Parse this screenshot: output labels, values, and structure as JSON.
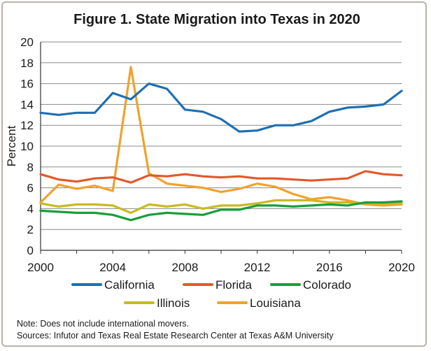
{
  "chart_data": {
    "type": "line",
    "title": "Figure 1. State Migration into Texas in 2020",
    "xlabel": "",
    "ylabel": "Percent",
    "xlim": [
      2000,
      2020
    ],
    "ylim": [
      0,
      20
    ],
    "x_ticks": [
      "2000",
      "2004",
      "2008",
      "2012",
      "2016",
      "2020"
    ],
    "y_ticks": [
      "0",
      "2",
      "4",
      "6",
      "8",
      "10",
      "12",
      "14",
      "16",
      "18",
      "20"
    ],
    "grid": "horizontal",
    "legend_position": "bottom",
    "x": [
      2000,
      2001,
      2002,
      2003,
      2004,
      2005,
      2006,
      2007,
      2008,
      2009,
      2010,
      2011,
      2012,
      2013,
      2014,
      2015,
      2016,
      2017,
      2018,
      2019,
      2020
    ],
    "series": [
      {
        "name": "California",
        "color": "#1f6fb2",
        "values": [
          13.2,
          13.0,
          13.2,
          13.2,
          15.1,
          14.5,
          16.0,
          15.5,
          13.5,
          13.3,
          12.6,
          11.4,
          11.5,
          12.0,
          12.0,
          12.4,
          13.3,
          13.7,
          13.8,
          14.0,
          15.3
        ]
      },
      {
        "name": "Florida",
        "color": "#e05a2b",
        "values": [
          7.3,
          6.8,
          6.6,
          6.9,
          7.0,
          6.5,
          7.2,
          7.1,
          7.3,
          7.1,
          7.0,
          7.1,
          6.9,
          6.9,
          6.8,
          6.7,
          6.8,
          6.9,
          7.6,
          7.3,
          7.2
        ]
      },
      {
        "name": "Colorado",
        "color": "#1a9e3a",
        "values": [
          3.8,
          3.7,
          3.6,
          3.6,
          3.4,
          2.9,
          3.4,
          3.6,
          3.5,
          3.4,
          3.9,
          3.9,
          4.3,
          4.3,
          4.2,
          4.3,
          4.4,
          4.3,
          4.6,
          4.6,
          4.7
        ]
      },
      {
        "name": "Illinois",
        "color": "#c9b923",
        "values": [
          4.5,
          4.2,
          4.4,
          4.4,
          4.3,
          3.6,
          4.4,
          4.2,
          4.4,
          4.0,
          4.3,
          4.3,
          4.5,
          4.8,
          4.8,
          4.8,
          4.6,
          4.6,
          4.5,
          4.5,
          4.5
        ]
      },
      {
        "name": "Louisiana",
        "color": "#f0a22d",
        "values": [
          4.6,
          6.3,
          5.9,
          6.2,
          5.7,
          17.6,
          7.4,
          6.4,
          6.2,
          6.0,
          5.6,
          5.9,
          6.4,
          6.1,
          5.4,
          4.9,
          5.1,
          4.8,
          4.4,
          4.3,
          4.4
        ]
      }
    ]
  },
  "notes": [
    "Note: Does not include international movers.",
    "Sources: Infutor and Texas Real Estate Research Center at Texas A&M University"
  ]
}
